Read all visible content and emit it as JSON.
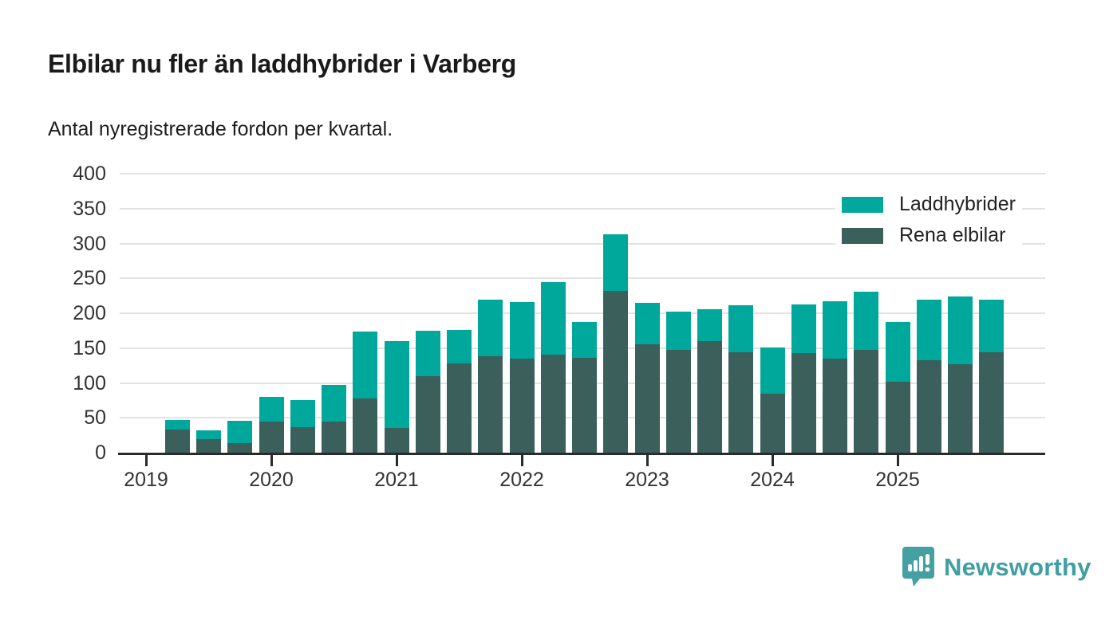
{
  "header": {
    "title": "Elbilar nu fler än laddhybrider i Varberg",
    "subtitle": "Antal nyregistrerade fordon per kvartal."
  },
  "chart_data": {
    "type": "bar",
    "stacked": true,
    "title": "Elbilar nu fler än laddhybrider i Varberg",
    "subtitle": "Antal nyregistrerade fordon per kvartal.",
    "categories": [
      "2019-Q2",
      "2019-Q3",
      "2019-Q4",
      "2020-Q1",
      "2020-Q2",
      "2020-Q3",
      "2020-Q4",
      "2021-Q1",
      "2021-Q2",
      "2021-Q3",
      "2021-Q4",
      "2022-Q1",
      "2022-Q2",
      "2022-Q3",
      "2022-Q4",
      "2023-Q1",
      "2023-Q2",
      "2023-Q3",
      "2023-Q4",
      "2024-Q1",
      "2024-Q2",
      "2024-Q3",
      "2024-Q4",
      "2025-Q1",
      "2025-Q2",
      "2025-Q3",
      "2025-Q4"
    ],
    "series": [
      {
        "name": "Rena elbilar",
        "color": "#3b5f5b",
        "values": [
          33,
          19,
          14,
          45,
          37,
          45,
          78,
          35,
          110,
          128,
          138,
          135,
          141,
          136,
          232,
          156,
          147,
          160,
          144,
          85,
          143,
          135,
          147,
          102,
          133,
          127,
          144
        ]
      },
      {
        "name": "Laddhybrider",
        "color": "#00a89c",
        "values": [
          14,
          13,
          32,
          35,
          39,
          52,
          96,
          125,
          65,
          48,
          81,
          81,
          104,
          51,
          81,
          59,
          55,
          46,
          68,
          66,
          70,
          82,
          84,
          85,
          86,
          97,
          76
        ]
      }
    ],
    "x_tick_labels": [
      "2019",
      "2020",
      "2021",
      "2022",
      "2023",
      "2024",
      "2025"
    ],
    "y_ticks": [
      0,
      50,
      100,
      150,
      200,
      250,
      300,
      350,
      400
    ],
    "ylim": [
      0,
      400
    ],
    "grid": true,
    "legend_position": "top-right",
    "legend": [
      {
        "label": "Laddhybrider",
        "color": "#00a89c"
      },
      {
        "label": "Rena elbilar",
        "color": "#3b5f5b"
      }
    ]
  },
  "footer": {
    "brand": "Newsworthy"
  },
  "colors": {
    "accent_teal": "#00a89c",
    "accent_dark": "#3b5f5b",
    "axis": "#2b2b2b",
    "gridline": "#e3e3e3",
    "brand_teal": "#3f9fa1"
  }
}
